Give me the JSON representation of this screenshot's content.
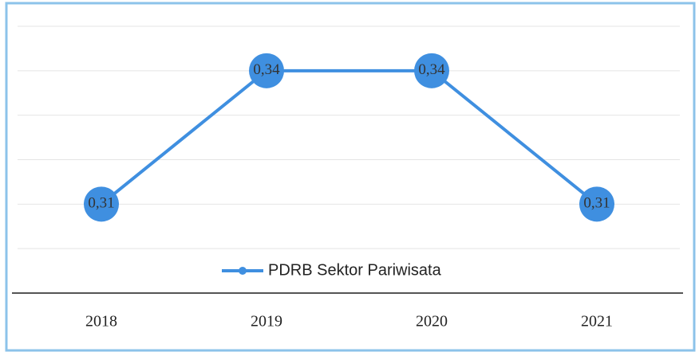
{
  "chart_data": {
    "type": "line",
    "categories": [
      "2018",
      "2019",
      "2020",
      "2021"
    ],
    "series": [
      {
        "name": "PDRB Sektor Pariwisata",
        "color": "#3f8fe0",
        "values": [
          0.31,
          0.34,
          0.34,
          0.31
        ],
        "value_labels": [
          "0,31",
          "0,34",
          "0,34",
          "0,31"
        ]
      }
    ],
    "ylim": [
      0.29,
      0.35
    ],
    "yticks": [
      0.3,
      0.31,
      0.32,
      0.33,
      0.34,
      0.35
    ],
    "grid": true,
    "legend": "bottom"
  }
}
